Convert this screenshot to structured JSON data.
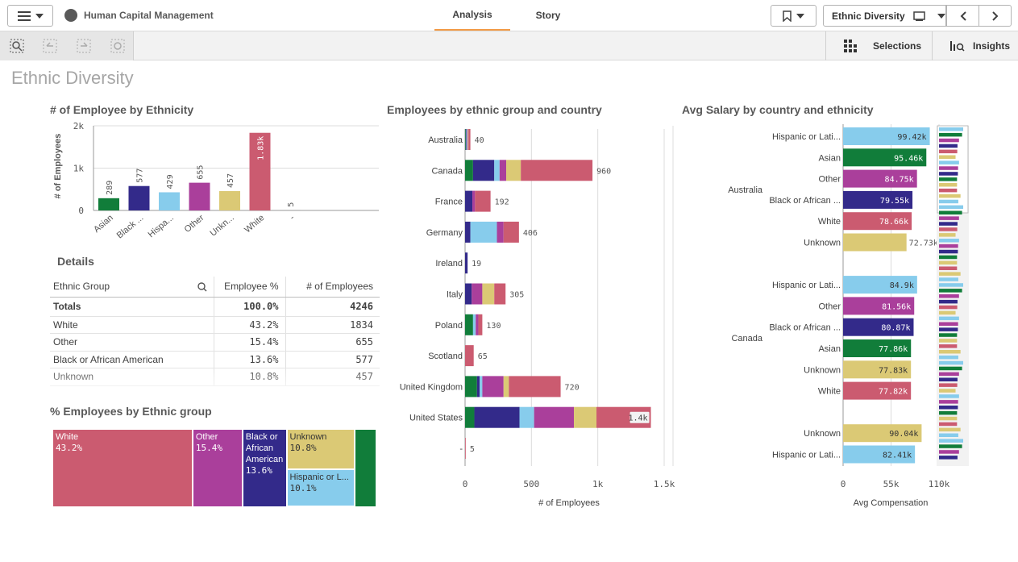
{
  "header": {
    "app_title": "Human Capital Management",
    "tabs": [
      "Analysis",
      "Story"
    ],
    "sheet_name": "Ethnic Diversity"
  },
  "toolbar": {
    "selections_label": "Selections",
    "insights_label": "Insights"
  },
  "page_title": "Ethnic Diversity",
  "colors": {
    "Asian": "#117d3a",
    "Black or African American": "#332a8a",
    "Hispanic or Latino": "#87ccec",
    "Other": "#aa3f9b",
    "Unknown": "#dbc975",
    "White": "#cb5b70",
    "-": "#888888"
  },
  "chart_data": [
    {
      "id": "employee-by-ethnicity",
      "type": "bar",
      "title": "# of Employee by Ethnicity",
      "ylabel": "# of Employees",
      "xlabel": "",
      "categories": [
        "Asian",
        "Black ...",
        "Hispa...",
        "Other",
        "Unkn...",
        "White",
        "-"
      ],
      "values": [
        289,
        577,
        429,
        655,
        457,
        1834,
        5
      ],
      "value_labels": [
        "289",
        "577",
        "429",
        "655",
        "457",
        "1.83k",
        "5"
      ],
      "ylim": [
        0,
        2000
      ],
      "yticks": [
        0,
        1000,
        2000
      ],
      "ytick_labels": [
        "0",
        "1k",
        "2k"
      ]
    },
    {
      "id": "employees-by-group-country",
      "type": "bar",
      "orientation": "horizontal-stacked",
      "title": "Employees by ethnic group and country",
      "xlabel": "# of Employees",
      "categories": [
        "Australia",
        "Canada",
        "France",
        "Germany",
        "Ireland",
        "Italy",
        "Poland",
        "Scotland",
        "United Kingdom",
        "United States",
        "-"
      ],
      "totals": [
        40,
        960,
        192,
        406,
        19,
        305,
        130,
        65,
        720,
        1400,
        5
      ],
      "total_labels": [
        "40",
        "960",
        "192",
        "406",
        "19",
        "305",
        "130",
        "65",
        "720",
        "1.4k",
        "5"
      ],
      "series": [
        {
          "name": "Asian",
          "values": [
            5,
            60,
            0,
            0,
            0,
            0,
            60,
            0,
            90,
            70,
            0
          ]
        },
        {
          "name": "Black or African American",
          "values": [
            5,
            160,
            55,
            40,
            19,
            50,
            0,
            0,
            20,
            340,
            0
          ]
        },
        {
          "name": "Hispanic or Latino",
          "values": [
            5,
            40,
            0,
            200,
            0,
            0,
            20,
            0,
            20,
            110,
            0
          ]
        },
        {
          "name": "Other",
          "values": [
            5,
            50,
            20,
            50,
            0,
            80,
            20,
            0,
            160,
            300,
            0
          ]
        },
        {
          "name": "Unknown",
          "values": [
            5,
            110,
            0,
            0,
            0,
            90,
            0,
            0,
            40,
            170,
            0
          ]
        },
        {
          "name": "White",
          "values": [
            15,
            540,
            117,
            116,
            0,
            85,
            30,
            65,
            390,
            410,
            5
          ]
        }
      ],
      "xlim": [
        0,
        1500
      ],
      "xticks": [
        0,
        500,
        1000,
        1500
      ],
      "xtick_labels": [
        "0",
        "500",
        "1k",
        "1.5k"
      ]
    },
    {
      "id": "avg-salary",
      "type": "bar",
      "orientation": "horizontal-grouped",
      "title": "Avg Salary by country and ethnicity",
      "xlabel": "Avg Compensation",
      "groups": [
        {
          "name": "Australia",
          "bars": [
            {
              "label": "Hispanic or Lati...",
              "ethnicity": "Hispanic or Latino",
              "value": 99420,
              "value_label": "99.42k"
            },
            {
              "label": "Asian",
              "ethnicity": "Asian",
              "value": 95460,
              "value_label": "95.46k"
            },
            {
              "label": "Other",
              "ethnicity": "Other",
              "value": 84750,
              "value_label": "84.75k"
            },
            {
              "label": "Black or African ...",
              "ethnicity": "Black or African American",
              "value": 79550,
              "value_label": "79.55k"
            },
            {
              "label": "White",
              "ethnicity": "White",
              "value": 78660,
              "value_label": "78.66k"
            },
            {
              "label": "Unknown",
              "ethnicity": "Unknown",
              "value": 72730,
              "value_label": "72.73k"
            }
          ]
        },
        {
          "name": "Canada",
          "bars": [
            {
              "label": "Hispanic or Lati...",
              "ethnicity": "Hispanic or Latino",
              "value": 84900,
              "value_label": "84.9k"
            },
            {
              "label": "Other",
              "ethnicity": "Other",
              "value": 81560,
              "value_label": "81.56k"
            },
            {
              "label": "Black or African ...",
              "ethnicity": "Black or African American",
              "value": 80870,
              "value_label": "80.87k"
            },
            {
              "label": "Asian",
              "ethnicity": "Asian",
              "value": 77860,
              "value_label": "77.86k"
            },
            {
              "label": "Unknown",
              "ethnicity": "Unknown",
              "value": 77830,
              "value_label": "77.83k"
            },
            {
              "label": "White",
              "ethnicity": "White",
              "value": 77820,
              "value_label": "77.82k"
            }
          ]
        },
        {
          "name": "",
          "bars": [
            {
              "label": "Unknown",
              "ethnicity": "Unknown",
              "value": 90040,
              "value_label": "90.04k"
            },
            {
              "label": "Hispanic or Lati...",
              "ethnicity": "Hispanic or Latino",
              "value": 82410,
              "value_label": "82.41k"
            }
          ]
        }
      ],
      "xlim": [
        0,
        110000
      ],
      "xticks": [
        0,
        55000,
        110000
      ],
      "xtick_labels": [
        "0",
        "55k",
        "110k"
      ]
    },
    {
      "id": "employees-treemap",
      "type": "treemap",
      "title": "% Employees by Ethnic group",
      "items": [
        {
          "name": "White",
          "pct_label": "43.2%",
          "value": 43.2
        },
        {
          "name": "Other",
          "pct_label": "15.4%",
          "value": 15.4
        },
        {
          "name": "Black or African American",
          "pct_label": "13.6%",
          "value": 13.6
        },
        {
          "name": "Unknown",
          "pct_label": "10.8%",
          "value": 10.8
        },
        {
          "name": "Hispanic or L...",
          "pct_label": "10.1%",
          "value": 10.1
        },
        {
          "name": "Asian",
          "pct_label": "",
          "value": 6.8
        }
      ]
    }
  ],
  "details": {
    "title": "Details",
    "columns": [
      "Ethnic Group",
      "Employee %",
      "# of Employees"
    ],
    "totals": {
      "label": "Totals",
      "pct": "100.0%",
      "count": "4246"
    },
    "rows": [
      {
        "group": "White",
        "pct": "43.2%",
        "count": "1834"
      },
      {
        "group": "Other",
        "pct": "15.4%",
        "count": "655"
      },
      {
        "group": "Black or African American",
        "pct": "13.6%",
        "count": "577"
      },
      {
        "group": "Unknown",
        "pct": "10.8%",
        "count": "457"
      }
    ]
  }
}
